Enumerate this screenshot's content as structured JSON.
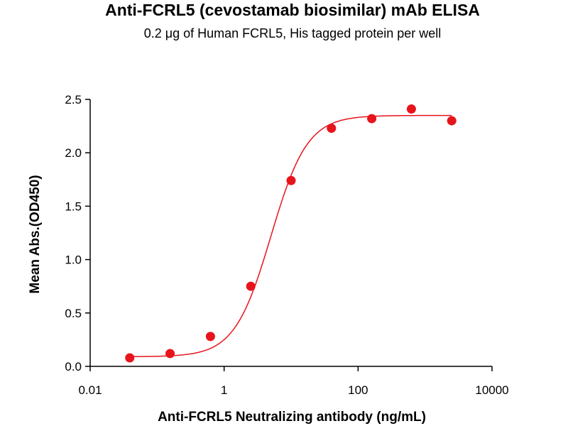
{
  "chart_data": {
    "type": "scatter",
    "title": "Anti-FCRL5 (cevostamab biosimilar) mAb ELISA",
    "subtitle": "0.2 μg of Human FCRL5, His tagged protein per well",
    "xlabel": "Anti-FCRL5 Neutralizing antibody (ng/mL)",
    "ylabel": "Mean Abs.(OD450)",
    "x_scale": "log10",
    "xlim": [
      0.01,
      10000
    ],
    "ylim": [
      0,
      2.5
    ],
    "x_ticks": [
      {
        "value": 0.01,
        "label": "0.01"
      },
      {
        "value": 1,
        "label": "1"
      },
      {
        "value": 100,
        "label": "100"
      },
      {
        "value": 10000,
        "label": "10000"
      }
    ],
    "y_ticks": [
      {
        "value": 0,
        "label": "0.0"
      },
      {
        "value": 0.5,
        "label": "0.5"
      },
      {
        "value": 1.0,
        "label": "1.0"
      },
      {
        "value": 1.5,
        "label": "1.5"
      },
      {
        "value": 2.0,
        "label": "2.0"
      },
      {
        "value": 2.5,
        "label": "2.5"
      }
    ],
    "grid": false,
    "series": [
      {
        "color": "#e8141c",
        "points": [
          {
            "x": 0.039,
            "y": 0.08
          },
          {
            "x": 0.156,
            "y": 0.12
          },
          {
            "x": 0.625,
            "y": 0.28
          },
          {
            "x": 2.5,
            "y": 0.75
          },
          {
            "x": 10,
            "y": 1.74
          },
          {
            "x": 40,
            "y": 2.23
          },
          {
            "x": 160,
            "y": 2.32
          },
          {
            "x": 625,
            "y": 2.41
          },
          {
            "x": 2500,
            "y": 2.3
          }
        ],
        "fit": {
          "bottom": 0.09,
          "top": 2.35,
          "ec50": 5.0,
          "hill": 1.6
        }
      }
    ]
  }
}
